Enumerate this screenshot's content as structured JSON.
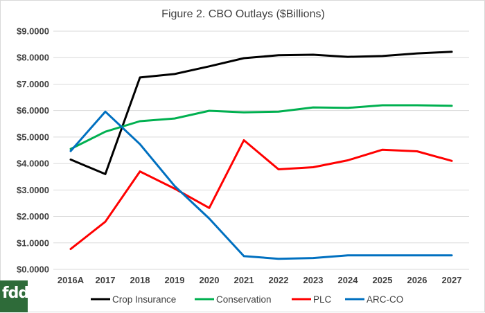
{
  "chart_data": {
    "type": "line",
    "title": "Figure 2.  CBO Outlays ($Billions)",
    "xlabel": "",
    "ylabel": "",
    "categories": [
      "2016A",
      "2017",
      "2018",
      "2019",
      "2020",
      "2021",
      "2022",
      "2023",
      "2024",
      "2025",
      "2026",
      "2027"
    ],
    "ylim": [
      0,
      9
    ],
    "yticks": [
      0,
      1,
      2,
      3,
      4,
      5,
      6,
      7,
      8,
      9
    ],
    "ytick_labels": [
      "$0.0000",
      "$1.0000",
      "$2.0000",
      "$3.0000",
      "$4.0000",
      "$5.0000",
      "$6.0000",
      "$7.0000",
      "$8.0000",
      "$9.0000"
    ],
    "grid": true,
    "legend_position": "bottom",
    "series": [
      {
        "name": "Crop Insurance",
        "color": "#000000",
        "values": [
          4.15,
          3.6,
          7.25,
          7.38,
          7.67,
          7.98,
          8.09,
          8.11,
          8.03,
          8.06,
          8.16,
          8.22
        ]
      },
      {
        "name": "Conservation",
        "color": "#00b050",
        "values": [
          4.55,
          5.2,
          5.6,
          5.7,
          5.99,
          5.93,
          5.96,
          6.12,
          6.1,
          6.2,
          6.2,
          6.18
        ]
      },
      {
        "name": "PLC",
        "color": "#ff0000",
        "values": [
          0.77,
          1.8,
          3.7,
          3.05,
          2.32,
          4.88,
          3.78,
          3.86,
          4.12,
          4.52,
          4.46,
          4.1
        ]
      },
      {
        "name": "ARC-CO",
        "color": "#0070c0",
        "values": [
          4.47,
          5.96,
          4.73,
          3.15,
          1.92,
          0.5,
          0.4,
          0.43,
          0.53,
          0.53,
          0.53,
          0.53
        ]
      }
    ]
  },
  "logo": {
    "text": "fdd"
  }
}
